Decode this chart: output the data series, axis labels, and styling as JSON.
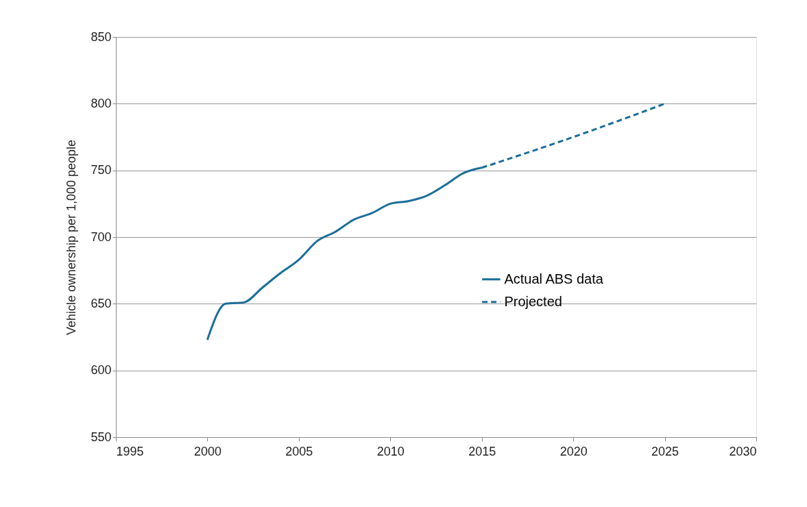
{
  "chart_data": {
    "type": "line",
    "ylabel": "Vehicle ownership per  1,000  people",
    "xlim": [
      1995,
      2030
    ],
    "xticks": [
      1995,
      2000,
      2005,
      2010,
      2015,
      2020,
      2025,
      2030
    ],
    "ylim": [
      550,
      850
    ],
    "yticks": [
      550,
      600,
      650,
      700,
      750,
      800,
      850
    ],
    "grid": "y",
    "legend": "right",
    "marker": "none",
    "series": [
      {
        "name": "Actual ABS data",
        "color": "#1a6e9a",
        "line_style": "solid",
        "x": [
          2000,
          2001,
          2002,
          2003,
          2004,
          2005,
          2006,
          2007,
          2008,
          2009,
          2010,
          2011,
          2012,
          2013,
          2014,
          2015
        ],
        "values": [
          623,
          650,
          651,
          662,
          673,
          683,
          697,
          704,
          713,
          718,
          725,
          727,
          731,
          739,
          748,
          752
        ]
      },
      {
        "name": "Projected",
        "color": "#1a6e9a",
        "line_style": "dashed",
        "x": [
          2015,
          2020,
          2025
        ],
        "values": [
          752,
          775,
          800
        ]
      }
    ]
  }
}
